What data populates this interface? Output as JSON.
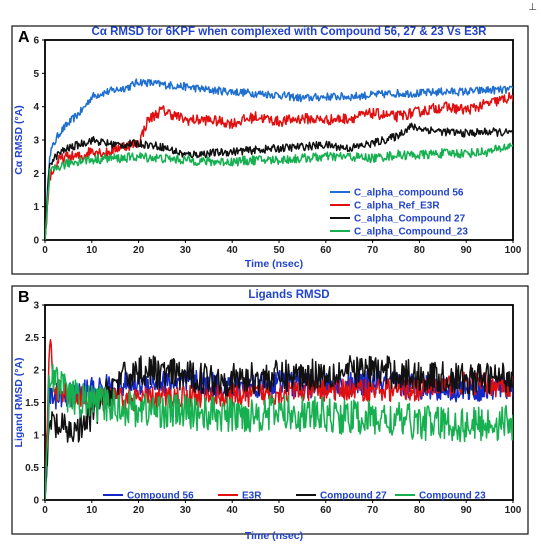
{
  "corner_mark": "⊥",
  "colors": {
    "compound56": "#1f6fd0",
    "e3r": "#e01010",
    "compound27": "#111111",
    "compound23": "#16b050",
    "ligand56": "#1428c8"
  },
  "chart_data": [
    {
      "panel": "A",
      "type": "line",
      "title": "Cα RMSD for 6KPF when complexed  with Compound 56, 27 & 23 Vs E3R",
      "xlabel": "Time (nsec)",
      "ylabel": "Cα RMSD (°A)",
      "xlim": [
        0,
        100
      ],
      "ylim": [
        0,
        6
      ],
      "xticks": [
        0,
        10,
        20,
        30,
        40,
        50,
        60,
        70,
        80,
        90,
        100
      ],
      "yticks": [
        0,
        1,
        2,
        3,
        4,
        5,
        6
      ],
      "legend_position": "bottom-right",
      "series": [
        {
          "name": "C_alpha_compound 56",
          "color_key": "compound56",
          "x": [
            0,
            1,
            3,
            5,
            8,
            10,
            12,
            15,
            18,
            20,
            23,
            26,
            30,
            35,
            40,
            45,
            50,
            55,
            60,
            65,
            70,
            75,
            80,
            85,
            90,
            95,
            100
          ],
          "y": [
            0,
            2.6,
            3.2,
            3.5,
            3.9,
            4.3,
            4.4,
            4.5,
            4.6,
            4.75,
            4.7,
            4.65,
            4.6,
            4.5,
            4.45,
            4.4,
            4.35,
            4.25,
            4.3,
            4.3,
            4.35,
            4.4,
            4.4,
            4.45,
            4.45,
            4.5,
            4.5
          ],
          "noise": 0.12
        },
        {
          "name": "C_alpha_Ref_E3R",
          "color_key": "e3r",
          "x": [
            0,
            1,
            3,
            5,
            8,
            10,
            13,
            16,
            20,
            22,
            25,
            30,
            35,
            40,
            45,
            50,
            55,
            60,
            65,
            70,
            75,
            80,
            85,
            90,
            95,
            100
          ],
          "y": [
            0,
            1.9,
            2.4,
            2.5,
            2.5,
            2.7,
            2.6,
            2.8,
            2.9,
            3.6,
            3.9,
            3.6,
            3.6,
            3.5,
            3.7,
            3.55,
            3.65,
            3.6,
            3.65,
            3.8,
            3.7,
            3.85,
            4.0,
            3.9,
            4.1,
            4.3
          ],
          "noise": 0.16
        },
        {
          "name": "C_alpha_Compound 27",
          "color_key": "compound27",
          "x": [
            0,
            1,
            3,
            5,
            8,
            10,
            13,
            16,
            20,
            25,
            30,
            35,
            40,
            45,
            50,
            55,
            60,
            65,
            70,
            75,
            78,
            80,
            85,
            90,
            95,
            100
          ],
          "y": [
            0,
            2.3,
            2.6,
            2.75,
            2.9,
            3.0,
            2.9,
            2.85,
            2.9,
            2.8,
            2.55,
            2.6,
            2.65,
            2.7,
            2.75,
            2.8,
            2.85,
            2.75,
            2.9,
            3.1,
            3.4,
            3.35,
            3.25,
            3.2,
            3.25,
            3.2
          ],
          "noise": 0.12
        },
        {
          "name": "C_alpha_Compound_23",
          "color_key": "compound23",
          "x": [
            0,
            1,
            3,
            5,
            8,
            10,
            13,
            16,
            20,
            25,
            30,
            35,
            40,
            45,
            50,
            55,
            60,
            65,
            70,
            75,
            80,
            85,
            90,
            95,
            100
          ],
          "y": [
            0,
            2.0,
            2.2,
            2.3,
            2.4,
            2.4,
            2.45,
            2.45,
            2.5,
            2.45,
            2.4,
            2.35,
            2.35,
            2.4,
            2.4,
            2.45,
            2.5,
            2.5,
            2.45,
            2.55,
            2.55,
            2.6,
            2.6,
            2.65,
            2.85
          ],
          "noise": 0.14
        }
      ]
    },
    {
      "panel": "B",
      "type": "line",
      "title": "Ligands RMSD",
      "xlabel": "Time (nsec)",
      "ylabel": "Ligand RMSD (°A)",
      "xlim": [
        0,
        100
      ],
      "ylim": [
        0,
        3
      ],
      "xticks": [
        0,
        10,
        20,
        30,
        40,
        50,
        60,
        70,
        80,
        90,
        100
      ],
      "yticks": [
        0,
        0.5,
        1,
        1.5,
        2,
        2.5,
        3
      ],
      "ytick_labels": [
        "0",
        "0.5",
        "1",
        "1.5",
        "2",
        "2.5",
        "3"
      ],
      "legend_position": "bottom",
      "series": [
        {
          "name": "Compound 56",
          "color_key": "ligand56",
          "x": [
            0,
            1,
            5,
            10,
            20,
            30,
            40,
            50,
            60,
            70,
            80,
            90,
            100
          ],
          "y": [
            0,
            1.6,
            1.6,
            1.7,
            1.8,
            1.8,
            1.75,
            1.8,
            1.75,
            1.8,
            1.75,
            1.7,
            1.75
          ],
          "noise": 0.2
        },
        {
          "name": "E3R",
          "color_key": "e3r",
          "x": [
            0,
            1,
            2,
            5,
            10,
            20,
            30,
            40,
            50,
            60,
            70,
            80,
            90,
            100
          ],
          "y": [
            0,
            2.5,
            1.7,
            1.6,
            1.55,
            1.55,
            1.6,
            1.6,
            1.65,
            1.7,
            1.7,
            1.7,
            1.8,
            1.75
          ],
          "noise": 0.18
        },
        {
          "name": "Compound 27",
          "color_key": "compound27",
          "x": [
            0,
            1,
            3,
            5,
            8,
            10,
            15,
            20,
            30,
            40,
            50,
            60,
            70,
            80,
            90,
            100
          ],
          "y": [
            0,
            1.2,
            1.1,
            1.05,
            1.1,
            1.3,
            1.8,
            2.0,
            1.9,
            1.85,
            1.9,
            1.95,
            2.0,
            1.9,
            1.85,
            1.9
          ],
          "noise": 0.25
        },
        {
          "name": "Compound 23",
          "color_key": "compound23",
          "x": [
            0,
            1,
            3,
            5,
            10,
            20,
            30,
            40,
            50,
            60,
            70,
            80,
            90,
            100
          ],
          "y": [
            0,
            2.0,
            1.8,
            1.6,
            1.5,
            1.4,
            1.35,
            1.3,
            1.35,
            1.3,
            1.25,
            1.2,
            1.15,
            1.2
          ],
          "noise": 0.28
        }
      ]
    }
  ]
}
